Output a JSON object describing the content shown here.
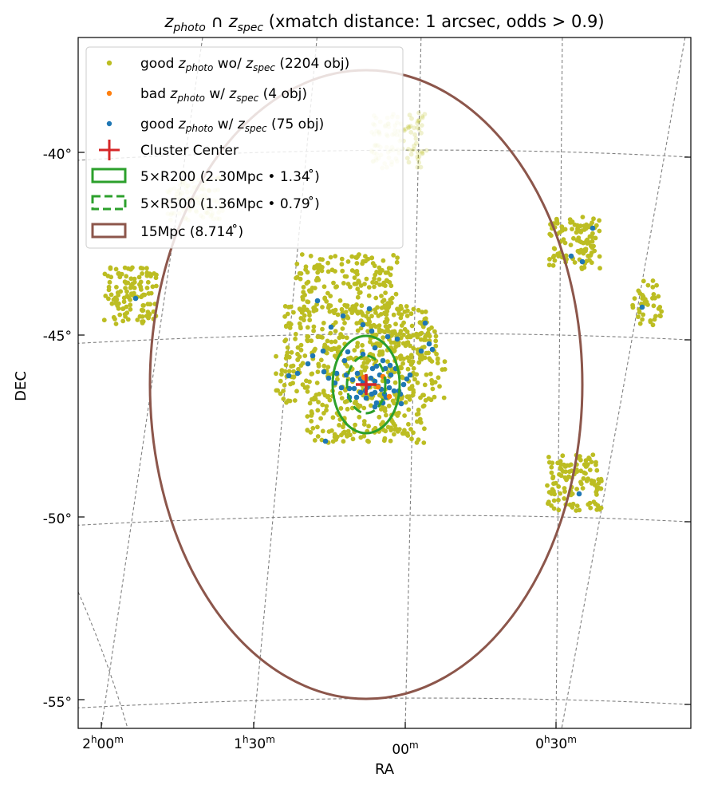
{
  "chart_data": {
    "type": "scatter",
    "projection": "sky (RA/DEC)",
    "title": {
      "z_photo": "z",
      "z_photo_sub": "photo",
      "cap": "∩",
      "z_spec": "z",
      "z_spec_sub": "spec",
      "rest": "(xmatch distance: 1 arcsec, odds > 0.9)"
    },
    "xlabel": "RA",
    "ylabel": "DEC",
    "x_ticks": [
      {
        "h": "2",
        "m": "00",
        "hs": "h",
        "ms": "m"
      },
      {
        "h": "1",
        "m": "30",
        "hs": "h",
        "ms": "m"
      },
      {
        "h": "",
        "m": "00",
        "hs": "",
        "ms": "m"
      },
      {
        "h": "0",
        "m": "30",
        "hs": "h",
        "ms": "m"
      }
    ],
    "y_ticks": [
      "-40°",
      "-45°",
      "-50°",
      "-55°"
    ],
    "dec_range": [
      -55.8,
      -36.3
    ],
    "grid": "dashed",
    "legend_position": "top-left",
    "colors": {
      "good_wo": "#bcbd22",
      "bad": "#ff7f0e",
      "good_w": "#1f77b4",
      "center": "#d62728",
      "r200": "#2ca02c",
      "r500": "#2ca02c",
      "mpc15": "#8c564b"
    },
    "legend": {
      "good_wo": {
        "pre": "good ",
        "z": "z",
        "sub": "photo",
        "mid": " wo/ ",
        "z2": "z",
        "sub2": "spec",
        "post": " (2204 obj)"
      },
      "bad": {
        "pre": "bad ",
        "z": "z",
        "sub": "photo",
        "mid": " w/ ",
        "z2": "z",
        "sub2": "spec",
        "post": " (4 obj)"
      },
      "good_w": {
        "pre": "good ",
        "z": "z",
        "sub": "photo",
        "mid": " w/ ",
        "z2": "z",
        "sub2": "spec",
        "post": " (75 obj)"
      },
      "center": "Cluster Center",
      "r200": "5×R200 (2.30Mpc • 1.34 ̊)",
      "r500": "5×R500 (1.36Mpc • 0.79 ̊)",
      "mpc15": "15Mpc (8.714 ̊)"
    },
    "series": [
      {
        "key": "good_wo",
        "name": "good z_photo wo/ z_spec",
        "count": 2204
      },
      {
        "key": "bad",
        "name": "bad z_photo w/ z_spec",
        "count": 4
      },
      {
        "key": "good_w",
        "name": "good z_photo w/ z_spec",
        "count": 75
      }
    ],
    "cluster_center": {
      "ra_deg": 2.0,
      "dec_deg": -46.3
    },
    "circles": [
      {
        "key": "r200",
        "radius_deg": 1.34,
        "style": "solid"
      },
      {
        "key": "r500",
        "radius_deg": 0.79,
        "style": "dashed"
      },
      {
        "key": "mpc15",
        "radius_deg": 8.714,
        "style": "solid"
      }
    ]
  }
}
